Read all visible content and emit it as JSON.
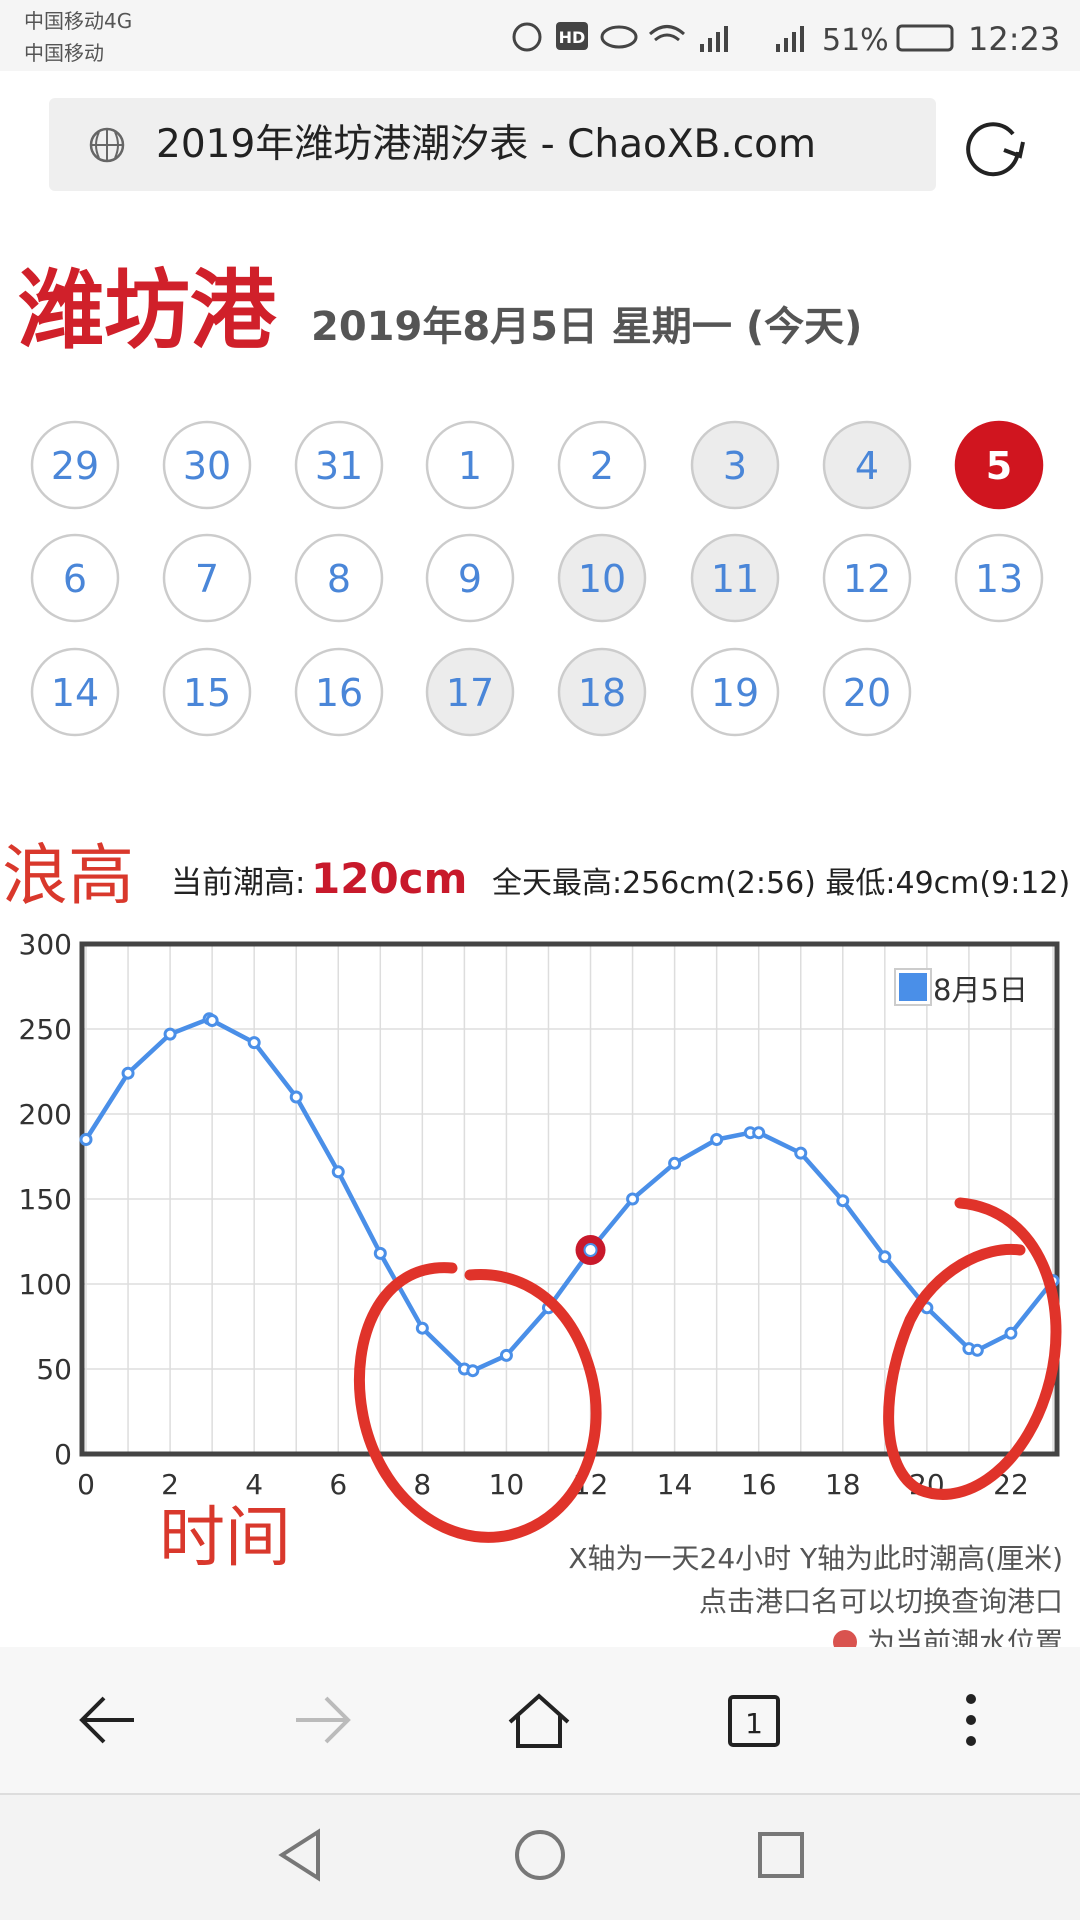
{
  "status": {
    "carrier1": "中国移动4G",
    "carrier2": "中国移动",
    "hd": "HD",
    "battery": "51%",
    "time": "12:23"
  },
  "url_bar": {
    "title": "2019年潍坊港潮汐表 - ChaoXB.com"
  },
  "heading": {
    "port": "潍坊港",
    "date": "2019年8月5日 星期一 (今天)"
  },
  "calendar": {
    "days": [
      {
        "label": "29",
        "state": "normal"
      },
      {
        "label": "30",
        "state": "normal"
      },
      {
        "label": "31",
        "state": "normal"
      },
      {
        "label": "1",
        "state": "normal"
      },
      {
        "label": "2",
        "state": "normal"
      },
      {
        "label": "3",
        "state": "weekend"
      },
      {
        "label": "4",
        "state": "weekend"
      },
      {
        "label": "5",
        "state": "selected"
      },
      {
        "label": "6",
        "state": "normal"
      },
      {
        "label": "7",
        "state": "normal"
      },
      {
        "label": "8",
        "state": "normal"
      },
      {
        "label": "9",
        "state": "normal"
      },
      {
        "label": "10",
        "state": "weekend"
      },
      {
        "label": "11",
        "state": "weekend"
      },
      {
        "label": "12",
        "state": "normal"
      },
      {
        "label": "13",
        "state": "normal"
      },
      {
        "label": "14",
        "state": "normal"
      },
      {
        "label": "15",
        "state": "normal"
      },
      {
        "label": "16",
        "state": "normal"
      },
      {
        "label": "17",
        "state": "weekend"
      },
      {
        "label": "18",
        "state": "weekend"
      },
      {
        "label": "19",
        "state": "normal"
      },
      {
        "label": "20",
        "state": "normal"
      }
    ]
  },
  "annotations": {
    "wave_height": "浪高",
    "time": "时间"
  },
  "info": {
    "current_label": "当前潮高:",
    "current_value": "120cm",
    "summary": "全天最高:256cm(2:56) 最低:49cm(9:12)"
  },
  "chart_data": {
    "type": "line",
    "x": [
      0,
      1,
      2,
      2.93,
      3,
      4,
      5,
      6,
      7,
      8,
      9,
      9.2,
      10,
      11,
      12,
      13,
      14,
      15,
      15.8,
      16,
      17,
      18,
      19,
      20,
      21,
      21.2,
      22,
      23
    ],
    "series": [
      {
        "name": "8月5日",
        "color": "#4a8fe8",
        "values": [
          185,
          224,
          247,
          256,
          255,
          242,
          210,
          166,
          118,
          74,
          50,
          49,
          58,
          86,
          120,
          150,
          171,
          185,
          189,
          189,
          177,
          149,
          116,
          86,
          62,
          61,
          71,
          102
        ]
      }
    ],
    "current": {
      "x": 12,
      "y": 120,
      "color": "#c8192b"
    },
    "xlim": [
      0,
      23
    ],
    "xticks": [
      0,
      2,
      4,
      6,
      8,
      10,
      12,
      14,
      16,
      18,
      20,
      22
    ],
    "x_minor_grid": [
      1,
      3,
      5,
      7,
      9,
      11,
      13,
      15,
      17,
      19,
      21,
      23
    ],
    "ylim": [
      0,
      300
    ],
    "yticks": [
      0,
      50,
      100,
      150,
      200,
      250,
      300
    ],
    "grid": true,
    "legend": "top-right"
  },
  "notes": {
    "axes": "X轴为一天24小时  Y轴为此时潮高(厘米)",
    "switch": "点击港口名可以切换查询港口",
    "marker": "为当前潮水位置"
  },
  "nav": {
    "tabs": "1"
  }
}
